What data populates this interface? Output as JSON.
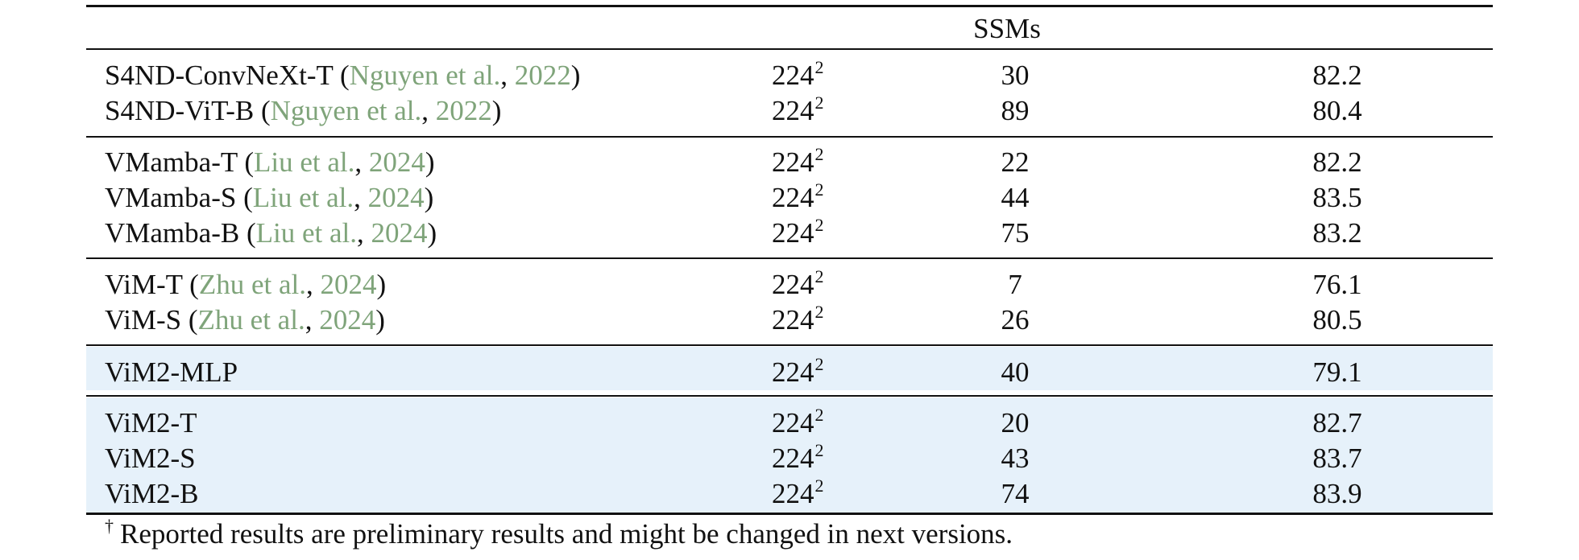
{
  "table": {
    "section_title": "SSMs",
    "footnote_mark": "†",
    "footnote_text": "Reported results are preliminary results and might be changed in next versions.",
    "groups": [
      {
        "highlighted": false,
        "rows": [
          {
            "name": "S4ND-ConvNeXt-T",
            "cite_authors": "Nguyen et al.",
            "cite_year": "2022",
            "res_base": "224",
            "res_exp": "2",
            "params": "30",
            "top1": "82.2"
          },
          {
            "name": "S4ND-ViT-B",
            "cite_authors": "Nguyen et al.",
            "cite_year": "2022",
            "res_base": "224",
            "res_exp": "2",
            "params": "89",
            "top1": "80.4"
          }
        ]
      },
      {
        "highlighted": false,
        "rows": [
          {
            "name": "VMamba-T",
            "cite_authors": "Liu et al.",
            "cite_year": "2024",
            "res_base": "224",
            "res_exp": "2",
            "params": "22",
            "top1": "82.2"
          },
          {
            "name": "VMamba-S",
            "cite_authors": "Liu et al.",
            "cite_year": "2024",
            "res_base": "224",
            "res_exp": "2",
            "params": "44",
            "top1": "83.5"
          },
          {
            "name": "VMamba-B",
            "cite_authors": "Liu et al.",
            "cite_year": "2024",
            "res_base": "224",
            "res_exp": "2",
            "params": "75",
            "top1": "83.2"
          }
        ]
      },
      {
        "highlighted": false,
        "rows": [
          {
            "name": "ViM-T",
            "cite_authors": "Zhu et al.",
            "cite_year": "2024",
            "res_base": "224",
            "res_exp": "2",
            "params": "7",
            "top1": "76.1"
          },
          {
            "name": "ViM-S",
            "cite_authors": "Zhu et al.",
            "cite_year": "2024",
            "res_base": "224",
            "res_exp": "2",
            "params": "26",
            "top1": "80.5"
          }
        ]
      },
      {
        "highlighted": true,
        "rows": [
          {
            "name": "ViM2-MLP",
            "res_base": "224",
            "res_exp": "2",
            "params": "40",
            "top1": "79.1"
          }
        ]
      },
      {
        "highlighted": true,
        "rows": [
          {
            "name": "ViM2-T",
            "res_base": "224",
            "res_exp": "2",
            "params": "20",
            "top1": "82.7"
          },
          {
            "name": "ViM2-S",
            "res_base": "224",
            "res_exp": "2",
            "params": "43",
            "top1": "83.7"
          },
          {
            "name": "ViM2-B",
            "res_base": "224",
            "res_exp": "2",
            "params": "74",
            "top1": "83.9"
          }
        ]
      }
    ],
    "colors": {
      "citation": "#7fa47a",
      "highlight": "#e6f1fa",
      "rule": "#111111",
      "text": "#111111"
    }
  }
}
